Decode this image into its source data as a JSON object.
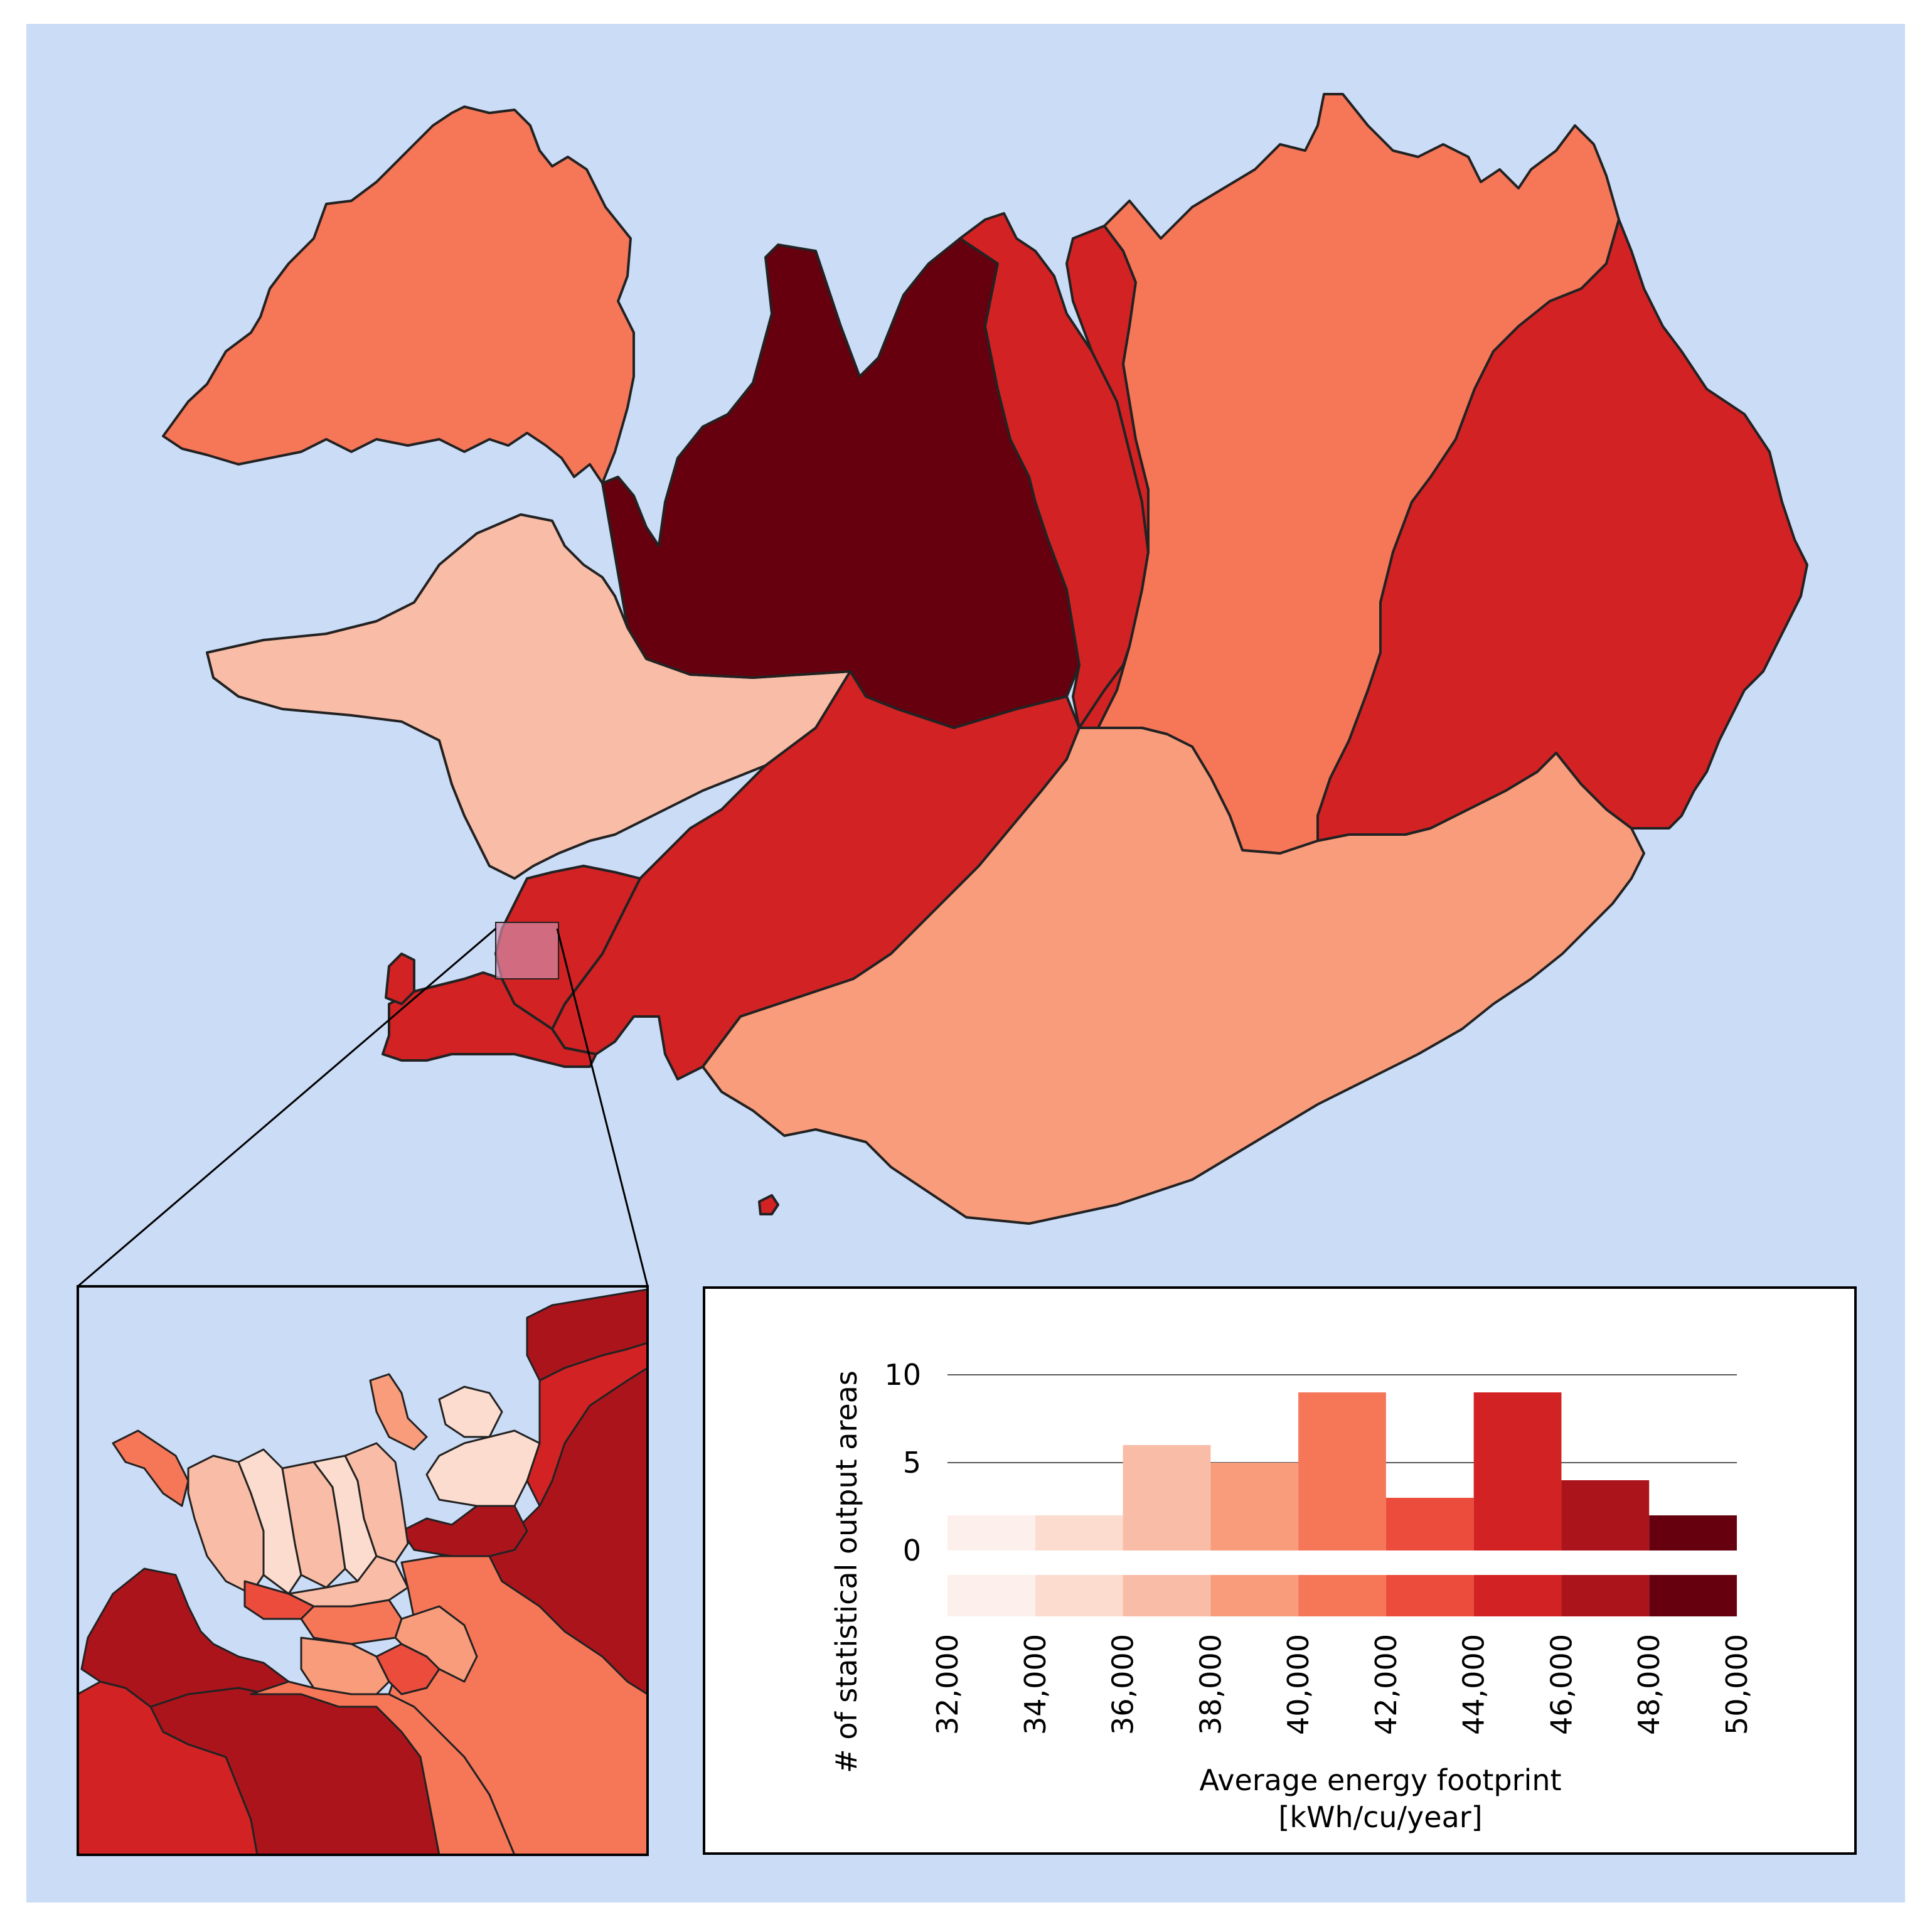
{
  "colors": {
    "ocean": "#cbdcf7",
    "bin_colors": [
      "#fdf0ec",
      "#fcdccf",
      "#f9bca6",
      "#f89c7c",
      "#f67658",
      "#ec4c3c",
      "#d22224",
      "#ac141c",
      "#67000e"
    ],
    "zoom_box": "#d08aa8"
  },
  "map": {
    "regions": [
      {
        "id": "westfjords",
        "class": 4
      },
      {
        "id": "west",
        "class": 2
      },
      {
        "id": "northwest",
        "class": 8
      },
      {
        "id": "northwest-strip",
        "class": 6
      },
      {
        "id": "north-central",
        "class": 6
      },
      {
        "id": "northeast",
        "class": 4
      },
      {
        "id": "east",
        "class": 6
      },
      {
        "id": "south-interior",
        "class": 6
      },
      {
        "id": "south",
        "class": 3
      },
      {
        "id": "capital-north",
        "class": 6
      },
      {
        "id": "reykjanes",
        "class": 6
      },
      {
        "id": "vestmannaeyjar",
        "class": 6
      }
    ]
  },
  "chart_data": {
    "type": "bar",
    "xlabel": "Average energy footprint\n[kWh/cu/year]",
    "xlabel_line1": "Average energy footprint",
    "xlabel_line2": "[kWh/cu/year]",
    "ylabel": "# of statistical output areas",
    "bin_edges": [
      32000,
      34000,
      36000,
      38000,
      40000,
      42000,
      44000,
      46000,
      48000,
      50000
    ],
    "tick_labels": [
      "32,000",
      "34,000",
      "36,000",
      "38,000",
      "40,000",
      "42,000",
      "44,000",
      "46,000",
      "48,000",
      "50,000"
    ],
    "values": [
      2,
      2,
      6,
      5,
      9,
      3,
      9,
      4,
      2
    ],
    "ylim": [
      0,
      10
    ],
    "yticks": [
      0,
      5,
      10
    ],
    "ytick_labels": [
      "0",
      "5",
      "10"
    ],
    "grid": true
  }
}
